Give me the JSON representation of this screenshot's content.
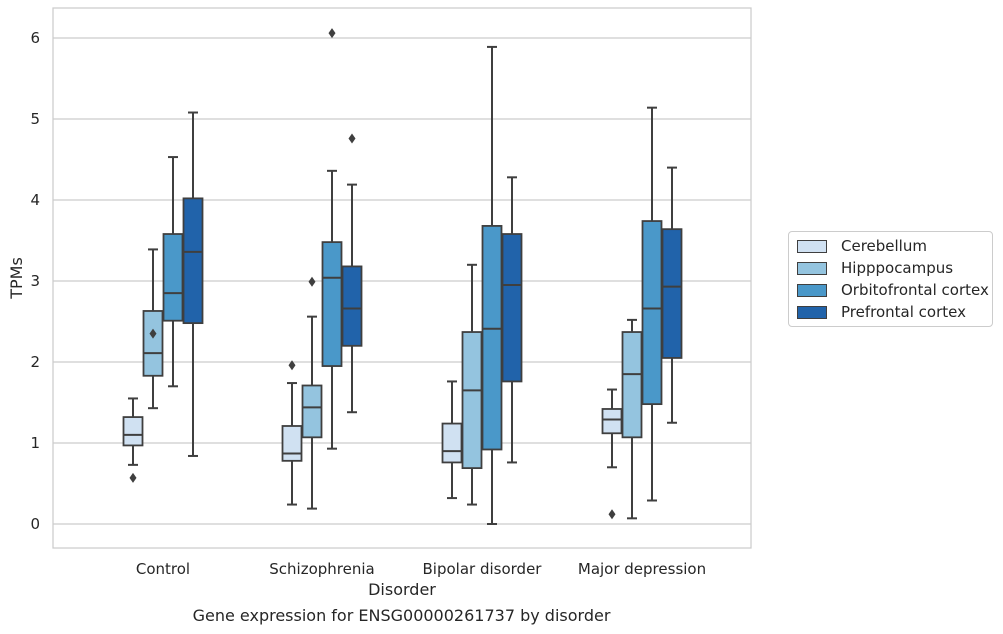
{
  "caption": "Gene expression for ENSG00000261737 by disorder",
  "chart_data": {
    "type": "box",
    "title": "",
    "xlabel": "Disorder",
    "ylabel": "TPMs",
    "ylim": [
      -0.3,
      6.35
    ],
    "yticks": [
      0,
      1,
      2,
      3,
      4,
      5,
      6
    ],
    "grid": true,
    "legend_position": "right",
    "categories": [
      "Control",
      "Schizophrenia",
      "Bipolar disorder",
      "Major depression"
    ],
    "series": [
      {
        "name": "Cerebellum",
        "color": "#d0e1f2",
        "boxes": [
          {
            "whisker_low": 0.73,
            "q1": 0.97,
            "median": 1.1,
            "q3": 1.32,
            "whisker_high": 1.55,
            "outliers": [
              0.57
            ]
          },
          {
            "whisker_low": 0.24,
            "q1": 0.78,
            "median": 0.87,
            "q3": 1.21,
            "whisker_high": 1.74,
            "outliers": [
              1.96
            ]
          },
          {
            "whisker_low": 0.32,
            "q1": 0.76,
            "median": 0.9,
            "q3": 1.24,
            "whisker_high": 1.76,
            "outliers": []
          },
          {
            "whisker_low": 0.7,
            "q1": 1.12,
            "median": 1.29,
            "q3": 1.42,
            "whisker_high": 1.66,
            "outliers": [
              0.12
            ]
          }
        ]
      },
      {
        "name": "Hipppocampus",
        "color": "#94c4df",
        "boxes": [
          {
            "whisker_low": 1.43,
            "q1": 1.83,
            "median": 2.11,
            "q3": 2.63,
            "whisker_high": 3.39,
            "outliers": [
              2.35
            ]
          },
          {
            "whisker_low": 0.19,
            "q1": 1.07,
            "median": 1.44,
            "q3": 1.71,
            "whisker_high": 2.56,
            "outliers": [
              2.99
            ]
          },
          {
            "whisker_low": 0.24,
            "q1": 0.69,
            "median": 1.65,
            "q3": 2.37,
            "whisker_high": 3.2,
            "outliers": []
          },
          {
            "whisker_low": 0.07,
            "q1": 1.07,
            "median": 1.85,
            "q3": 2.37,
            "whisker_high": 2.52,
            "outliers": []
          }
        ]
      },
      {
        "name": "Orbitofrontal cortex",
        "color": "#4a98c9",
        "boxes": [
          {
            "whisker_low": 1.7,
            "q1": 2.51,
            "median": 2.85,
            "q3": 3.58,
            "whisker_high": 4.53,
            "outliers": []
          },
          {
            "whisker_low": 0.93,
            "q1": 1.95,
            "median": 3.04,
            "q3": 3.48,
            "whisker_high": 4.36,
            "outliers": [
              6.06
            ]
          },
          {
            "whisker_low": 0.0,
            "q1": 0.92,
            "median": 2.41,
            "q3": 3.68,
            "whisker_high": 5.89,
            "outliers": []
          },
          {
            "whisker_low": 0.29,
            "q1": 1.48,
            "median": 2.66,
            "q3": 3.74,
            "whisker_high": 5.14,
            "outliers": []
          }
        ]
      },
      {
        "name": "Prefrontal cortex",
        "color": "#2163aa",
        "boxes": [
          {
            "whisker_low": 0.84,
            "q1": 2.48,
            "median": 3.36,
            "q3": 4.02,
            "whisker_high": 5.08,
            "outliers": []
          },
          {
            "whisker_low": 1.38,
            "q1": 2.2,
            "median": 2.66,
            "q3": 3.18,
            "whisker_high": 4.19,
            "outliers": [
              4.76
            ]
          },
          {
            "whisker_low": 0.76,
            "q1": 1.76,
            "median": 2.95,
            "q3": 3.58,
            "whisker_high": 4.28,
            "outliers": []
          },
          {
            "whisker_low": 1.25,
            "q1": 2.05,
            "median": 2.93,
            "q3": 3.64,
            "whisker_high": 4.4,
            "outliers": []
          }
        ]
      }
    ]
  }
}
